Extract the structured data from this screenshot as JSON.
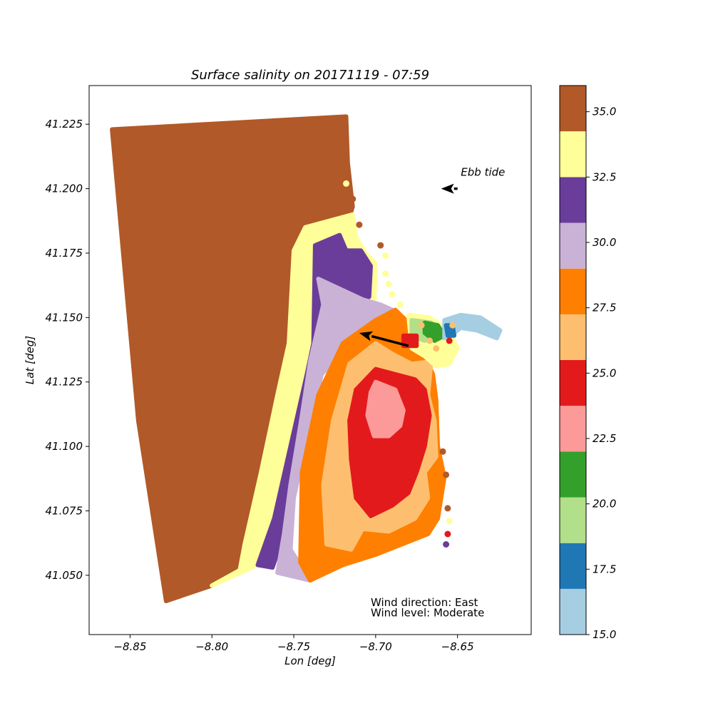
{
  "chart_data": {
    "type": "scatter",
    "title": "Surface salinity on 20171119 - 07:59",
    "xlabel": "Lon [deg]",
    "ylabel": "Lat [deg]",
    "xlim": [
      -8.875,
      -8.605
    ],
    "ylim": [
      41.027,
      41.24
    ],
    "xticks": [
      {
        "value": -8.85,
        "label": "−8.85"
      },
      {
        "value": -8.8,
        "label": "−8.80"
      },
      {
        "value": -8.75,
        "label": "−8.75"
      },
      {
        "value": -8.7,
        "label": "−8.70"
      },
      {
        "value": -8.65,
        "label": "−8.65"
      }
    ],
    "yticks": [
      {
        "value": 41.05,
        "label": "41.050"
      },
      {
        "value": 41.075,
        "label": "41.075"
      },
      {
        "value": 41.1,
        "label": "41.100"
      },
      {
        "value": 41.125,
        "label": "41.125"
      },
      {
        "value": 41.15,
        "label": "41.150"
      },
      {
        "value": 41.175,
        "label": "41.175"
      },
      {
        "value": 41.2,
        "label": "41.200"
      },
      {
        "value": 41.225,
        "label": "41.225"
      }
    ],
    "grid": false,
    "colorbar": {
      "range": [
        15.0,
        36.0
      ],
      "levels": [
        15.0,
        16.75,
        18.5,
        20.25,
        22.0,
        23.75,
        25.5,
        27.25,
        29.0,
        30.75,
        32.5,
        34.25,
        36.0
      ],
      "colors": [
        "#a6cee3",
        "#1f78b4",
        "#b2df8a",
        "#33a02c",
        "#fb9a99",
        "#e31a1c",
        "#fdbf6f",
        "#ff7f00",
        "#cab2d6",
        "#6a3d9a",
        "#ffff99",
        "#b15928"
      ],
      "ticks": [
        {
          "value": 15.0,
          "label": "15.0"
        },
        {
          "value": 17.5,
          "label": "17.5"
        },
        {
          "value": 20.0,
          "label": "20.0"
        },
        {
          "value": 22.5,
          "label": "22.5"
        },
        {
          "value": 25.0,
          "label": "25.0"
        },
        {
          "value": 27.5,
          "label": "27.5"
        },
        {
          "value": 30.0,
          "label": "30.0"
        },
        {
          "value": 32.5,
          "label": "32.5"
        },
        {
          "value": 35.0,
          "label": "35.0"
        }
      ]
    },
    "regions": [
      {
        "name": "ocean-35",
        "value": 35.0,
        "color": "#b15928",
        "points": [
          [
            -8.861,
            41.223
          ],
          [
            -8.718,
            41.228
          ],
          [
            -8.717,
            41.21
          ],
          [
            -8.714,
            41.193
          ],
          [
            -8.716,
            41.189
          ],
          [
            -8.745,
            41.184
          ],
          [
            -8.75,
            41.176
          ],
          [
            -8.753,
            41.14
          ],
          [
            -8.76,
            41.12
          ],
          [
            -8.77,
            41.09
          ],
          [
            -8.78,
            41.062
          ],
          [
            -8.783,
            41.052
          ],
          [
            -8.8,
            41.046
          ],
          [
            -8.828,
            41.04
          ],
          [
            -8.845,
            41.11
          ]
        ]
      },
      {
        "name": "band-33.5",
        "value": 33.5,
        "color": "#ffff99",
        "points": [
          [
            -8.743,
            41.185
          ],
          [
            -8.714,
            41.19
          ],
          [
            -8.712,
            41.181
          ],
          [
            -8.706,
            41.175
          ],
          [
            -8.7,
            41.171
          ],
          [
            -8.701,
            41.153
          ],
          [
            -8.728,
            41.145
          ],
          [
            -8.742,
            41.128
          ],
          [
            -8.752,
            41.1
          ],
          [
            -8.762,
            41.072
          ],
          [
            -8.772,
            41.054
          ],
          [
            -8.8,
            41.046
          ],
          [
            -8.783,
            41.052
          ],
          [
            -8.78,
            41.062
          ],
          [
            -8.77,
            41.09
          ],
          [
            -8.76,
            41.12
          ],
          [
            -8.753,
            41.14
          ],
          [
            -8.75,
            41.176
          ]
        ]
      },
      {
        "name": "band-31.5",
        "value": 31.5,
        "color": "#6a3d9a",
        "points": [
          [
            -8.737,
            41.178
          ],
          [
            -8.722,
            41.182
          ],
          [
            -8.718,
            41.176
          ],
          [
            -8.709,
            41.176
          ],
          [
            -8.703,
            41.17
          ],
          [
            -8.704,
            41.158
          ],
          [
            -8.728,
            41.15
          ],
          [
            -8.74,
            41.133
          ],
          [
            -8.745,
            41.112
          ],
          [
            -8.752,
            41.085
          ],
          [
            -8.756,
            41.066
          ],
          [
            -8.763,
            41.053
          ],
          [
            -8.772,
            41.054
          ],
          [
            -8.762,
            41.072
          ],
          [
            -8.752,
            41.1
          ],
          [
            -8.742,
            41.128
          ],
          [
            -8.738,
            41.14
          ]
        ]
      },
      {
        "name": "band-30",
        "value": 30.0,
        "color": "#cab2d6",
        "points": [
          [
            -8.735,
            41.165
          ],
          [
            -8.708,
            41.157
          ],
          [
            -8.697,
            41.155
          ],
          [
            -8.69,
            41.153
          ],
          [
            -8.683,
            41.15
          ],
          [
            -8.685,
            41.145
          ],
          [
            -8.692,
            41.14
          ],
          [
            -8.7,
            41.135
          ],
          [
            -8.718,
            41.138
          ],
          [
            -8.733,
            41.128
          ],
          [
            -8.743,
            41.1
          ],
          [
            -8.75,
            41.08
          ],
          [
            -8.752,
            41.06
          ],
          [
            -8.74,
            41.048
          ],
          [
            -8.76,
            41.051
          ],
          [
            -8.756,
            41.066
          ],
          [
            -8.752,
            41.085
          ],
          [
            -8.745,
            41.112
          ],
          [
            -8.74,
            41.133
          ],
          [
            -8.732,
            41.155
          ]
        ]
      },
      {
        "name": "band-28",
        "value": 28.0,
        "color": "#ff7f00",
        "points": [
          [
            -8.7,
            41.149
          ],
          [
            -8.688,
            41.153
          ],
          [
            -8.68,
            41.148
          ],
          [
            -8.678,
            41.14
          ],
          [
            -8.67,
            41.135
          ],
          [
            -8.665,
            41.128
          ],
          [
            -8.663,
            41.118
          ],
          [
            -8.662,
            41.1
          ],
          [
            -8.658,
            41.088
          ],
          [
            -8.662,
            41.072
          ],
          [
            -8.668,
            41.066
          ],
          [
            -8.7,
            41.058
          ],
          [
            -8.72,
            41.054
          ],
          [
            -8.74,
            41.048
          ],
          [
            -8.746,
            41.055
          ],
          [
            -8.745,
            41.09
          ],
          [
            -8.735,
            41.12
          ],
          [
            -8.72,
            41.14
          ]
        ]
      },
      {
        "name": "band-26.5",
        "value": 26.5,
        "color": "#fdbf6f",
        "points": [
          [
            -8.7,
            41.14
          ],
          [
            -8.69,
            41.136
          ],
          [
            -8.678,
            41.132
          ],
          [
            -8.666,
            41.133
          ],
          [
            -8.668,
            41.12
          ],
          [
            -8.664,
            41.11
          ],
          [
            -8.663,
            41.096
          ],
          [
            -8.67,
            41.09
          ],
          [
            -8.668,
            41.08
          ],
          [
            -8.676,
            41.072
          ],
          [
            -8.692,
            41.067
          ],
          [
            -8.708,
            41.068
          ],
          [
            -8.715,
            41.06
          ],
          [
            -8.73,
            41.062
          ],
          [
            -8.732,
            41.085
          ],
          [
            -8.726,
            41.11
          ],
          [
            -8.716,
            41.132
          ]
        ]
      },
      {
        "name": "band-24.5",
        "value": 24.5,
        "color": "#e31a1c",
        "points": [
          [
            -8.7,
            41.13
          ],
          [
            -8.688,
            41.128
          ],
          [
            -8.676,
            41.126
          ],
          [
            -8.67,
            41.122
          ],
          [
            -8.667,
            41.112
          ],
          [
            -8.67,
            41.1
          ],
          [
            -8.675,
            41.09
          ],
          [
            -8.68,
            41.082
          ],
          [
            -8.69,
            41.077
          ],
          [
            -8.703,
            41.073
          ],
          [
            -8.712,
            41.08
          ],
          [
            -8.715,
            41.095
          ],
          [
            -8.716,
            41.11
          ],
          [
            -8.712,
            41.122
          ]
        ]
      },
      {
        "name": "core-23",
        "value": 23.0,
        "color": "#fb9a99",
        "points": [
          [
            -8.7,
            41.125
          ],
          [
            -8.688,
            41.122
          ],
          [
            -8.683,
            41.114
          ],
          [
            -8.685,
            41.108
          ],
          [
            -8.692,
            41.104
          ],
          [
            -8.701,
            41.104
          ],
          [
            -8.705,
            41.112
          ],
          [
            -8.703,
            41.121
          ]
        ]
      },
      {
        "name": "plume-33.5",
        "value": 33.5,
        "color": "#ffff99",
        "points": [
          [
            -8.68,
            41.151
          ],
          [
            -8.667,
            41.15
          ],
          [
            -8.655,
            41.145
          ],
          [
            -8.65,
            41.138
          ],
          [
            -8.655,
            41.132
          ],
          [
            -8.663,
            41.131
          ],
          [
            -8.67,
            41.135
          ],
          [
            -8.678,
            41.138
          ]
        ]
      },
      {
        "name": "estuary-20",
        "value": 20.0,
        "color": "#b2df8a",
        "points": [
          [
            -8.678,
            41.149
          ],
          [
            -8.666,
            41.148
          ],
          [
            -8.662,
            41.143
          ],
          [
            -8.67,
            41.141
          ],
          [
            -8.678,
            41.143
          ]
        ]
      },
      {
        "name": "estuary-21",
        "value": 21.0,
        "color": "#33a02c",
        "points": [
          [
            -8.67,
            41.148
          ],
          [
            -8.662,
            41.147
          ],
          [
            -8.658,
            41.143
          ],
          [
            -8.664,
            41.141
          ],
          [
            -8.67,
            41.144
          ]
        ]
      },
      {
        "name": "estuary-16",
        "value": 16.0,
        "color": "#a6cee3",
        "points": [
          [
            -8.658,
            41.149
          ],
          [
            -8.648,
            41.151
          ],
          [
            -8.636,
            41.15
          ],
          [
            -8.624,
            41.145
          ],
          [
            -8.626,
            41.142
          ],
          [
            -8.638,
            41.145
          ],
          [
            -8.648,
            41.146
          ],
          [
            -8.654,
            41.143
          ],
          [
            -8.658,
            41.142
          ]
        ]
      },
      {
        "name": "estuary-17.5",
        "value": 17.5,
        "color": "#1f78b4",
        "points": [
          [
            -8.657,
            41.147
          ],
          [
            -8.653,
            41.147
          ],
          [
            -8.652,
            41.143
          ],
          [
            -8.656,
            41.143
          ]
        ]
      },
      {
        "name": "estuary-24.5",
        "value": 24.5,
        "color": "#e31a1c",
        "points": [
          [
            -8.683,
            41.143
          ],
          [
            -8.675,
            41.143
          ],
          [
            -8.675,
            41.139
          ],
          [
            -8.683,
            41.139
          ]
        ]
      }
    ],
    "scatter_points": [
      {
        "lon": -8.718,
        "lat": 41.202,
        "value": 33.5
      },
      {
        "lon": -8.714,
        "lat": 41.196,
        "value": 35.0
      },
      {
        "lon": -8.71,
        "lat": 41.186,
        "value": 35.0
      },
      {
        "lon": -8.697,
        "lat": 41.178,
        "value": 35.0
      },
      {
        "lon": -8.694,
        "lat": 41.174,
        "value": 33.5
      },
      {
        "lon": -8.694,
        "lat": 41.167,
        "value": 33.5
      },
      {
        "lon": -8.692,
        "lat": 41.163,
        "value": 33.5
      },
      {
        "lon": -8.69,
        "lat": 41.159,
        "value": 33.5
      },
      {
        "lon": -8.685,
        "lat": 41.155,
        "value": 33.5
      },
      {
        "lon": -8.672,
        "lat": 41.147,
        "value": 27.0
      },
      {
        "lon": -8.667,
        "lat": 41.141,
        "value": 26.5
      },
      {
        "lon": -8.663,
        "lat": 41.138,
        "value": 26.5
      },
      {
        "lon": -8.653,
        "lat": 41.147,
        "value": 27.0
      },
      {
        "lon": -8.655,
        "lat": 41.141,
        "value": 24.0
      },
      {
        "lon": -8.659,
        "lat": 41.098,
        "value": 35.0
      },
      {
        "lon": -8.657,
        "lat": 41.089,
        "value": 35.0
      },
      {
        "lon": -8.656,
        "lat": 41.076,
        "value": 35.0
      },
      {
        "lon": -8.655,
        "lat": 41.071,
        "value": 33.5
      },
      {
        "lon": -8.656,
        "lat": 41.066,
        "value": 24.5
      },
      {
        "lon": -8.657,
        "lat": 41.062,
        "value": 31.5
      }
    ],
    "arrows": [
      {
        "name": "ebb-tide",
        "from": [
          -8.65,
          41.2
        ],
        "to": [
          -8.66,
          41.2
        ]
      },
      {
        "name": "wind",
        "from": [
          -8.68,
          41.139
        ],
        "to": [
          -8.71,
          41.144
        ]
      }
    ],
    "annotations": [
      {
        "name": "ebb-tide-label",
        "text": "Ebb tide",
        "lon": -8.648,
        "lat": 41.205
      },
      {
        "name": "wind-direction-label",
        "text": "Wind direction: East",
        "lon": -8.703,
        "lat": 41.038
      },
      {
        "name": "wind-level-label",
        "text": "Wind level: Moderate",
        "lon": -8.703,
        "lat": 41.034
      }
    ]
  }
}
